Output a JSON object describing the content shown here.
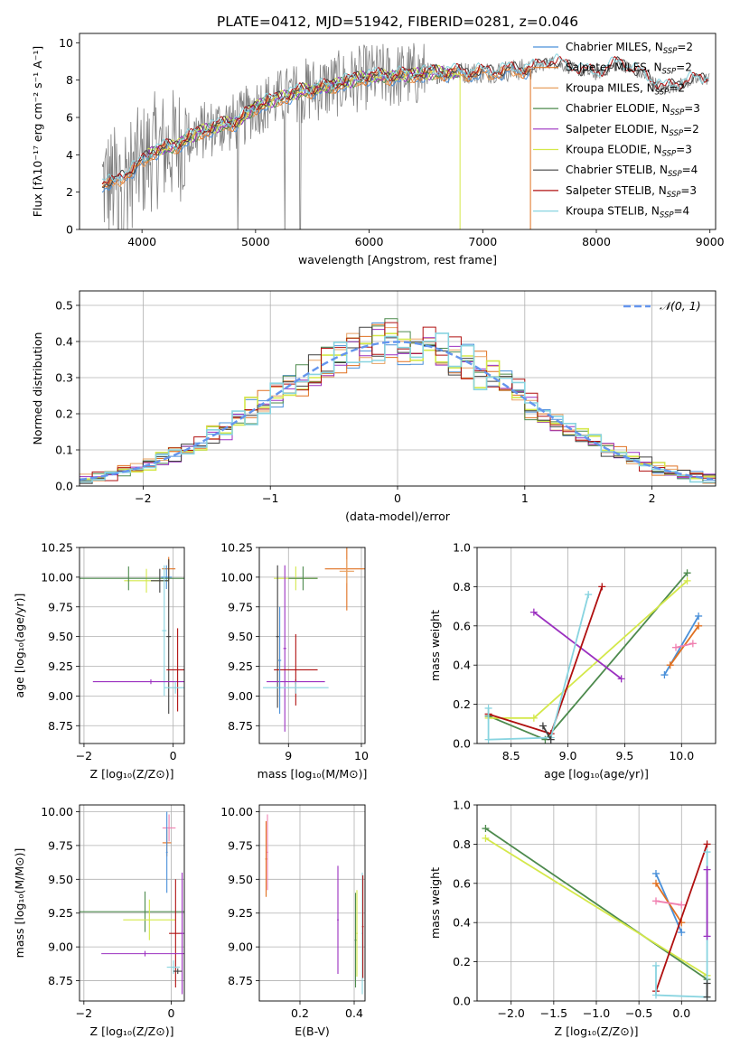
{
  "title": "PLATE=0412, MJD=51942, FIBERID=0281, z=0.046",
  "colors": {
    "Chabrier MILES": "#4a90d9",
    "Salpeter MILES": "#e07020",
    "Kroupa MILES": "#e8a060",
    "Chabrier ELODIE": "#4d8a4d",
    "Salpeter ELODIE": "#9b30c0",
    "Kroupa ELODIE": "#d4e84a",
    "Chabrier STELIB": "#404040",
    "Salpeter STELIB": "#b01010",
    "Kroupa STELIB": "#88d4e0",
    "data": "#808080",
    "normal": "#6495ed",
    "extra_pink": "#f080b0"
  },
  "chart_data": [
    {
      "id": "spectrum",
      "type": "line",
      "xlabel": "wavelength [Angstrom, rest frame]",
      "ylabel": "Flux [fλ10⁻¹⁷ erg cm⁻² s⁻¹ A⁻¹]",
      "xlim": [
        3450,
        9050
      ],
      "ylim": [
        0,
        10.5
      ],
      "xticks": [
        4000,
        5000,
        6000,
        7000,
        8000,
        9000
      ],
      "yticks": [
        0,
        2,
        4,
        6,
        8,
        10
      ],
      "legend_position": "top-right",
      "legend": [
        {
          "label": "Chabrier MILES, N",
          "sub": "SSP",
          "suffix": "=2",
          "color_key": "Chabrier MILES"
        },
        {
          "label": "Salpeter MILES, N",
          "sub": "SSP",
          "suffix": "=2",
          "color_key": "Salpeter MILES"
        },
        {
          "label": "Kroupa MILES, N",
          "sub": "SSP",
          "suffix": "=2",
          "color_key": "Kroupa MILES"
        },
        {
          "label": "Chabrier ELODIE, N",
          "sub": "SSP",
          "suffix": "=3",
          "color_key": "Chabrier ELODIE"
        },
        {
          "label": "Salpeter ELODIE, N",
          "sub": "SSP",
          "suffix": "=2",
          "color_key": "Salpeter ELODIE"
        },
        {
          "label": "Kroupa ELODIE, N",
          "sub": "SSP",
          "suffix": "=3",
          "color_key": "Kroupa ELODIE"
        },
        {
          "label": "Chabrier STELIB, N",
          "sub": "SSP",
          "suffix": "=4",
          "color_key": "Chabrier STELIB"
        },
        {
          "label": "Salpeter STELIB, N",
          "sub": "SSP",
          "suffix": "=3",
          "color_key": "Salpeter STELIB"
        },
        {
          "label": "Kroupa STELIB, N",
          "sub": "SSP",
          "suffix": "=4",
          "color_key": "Kroupa STELIB"
        }
      ],
      "continuum": [
        [
          3650,
          2.5
        ],
        [
          3750,
          2.4
        ],
        [
          3850,
          3.0
        ],
        [
          3950,
          3.3
        ],
        [
          4100,
          4.2
        ],
        [
          4300,
          4.5
        ],
        [
          4500,
          5.2
        ],
        [
          4700,
          5.6
        ],
        [
          4860,
          5.8
        ],
        [
          5000,
          6.6
        ],
        [
          5200,
          7.0
        ],
        [
          5400,
          7.4
        ],
        [
          5600,
          7.6
        ],
        [
          5800,
          7.9
        ],
        [
          6000,
          8.2
        ],
        [
          6200,
          8.2
        ],
        [
          6400,
          8.3
        ],
        [
          6600,
          8.4
        ],
        [
          6800,
          8.4
        ],
        [
          7000,
          8.4
        ],
        [
          7200,
          8.5
        ],
        [
          7450,
          8.6
        ],
        [
          7600,
          9.0
        ],
        [
          7800,
          8.6
        ],
        [
          8000,
          8.3
        ],
        [
          8200,
          8.9
        ],
        [
          8400,
          8.3
        ],
        [
          8600,
          7.5
        ],
        [
          8800,
          7.9
        ],
        [
          9000,
          8.1
        ]
      ],
      "model_ranges": {
        "Chabrier MILES": [
          3650,
          7420
        ],
        "Salpeter MILES": [
          3650,
          7420
        ],
        "Kroupa MILES": [
          3650,
          7420
        ],
        "Chabrier ELODIE": [
          4050,
          6800
        ],
        "Salpeter ELODIE": [
          4050,
          6800
        ],
        "Kroupa ELODIE": [
          4050,
          6800
        ],
        "Chabrier STELIB": [
          3650,
          9000
        ],
        "Salpeter STELIB": [
          3650,
          9000
        ],
        "Kroupa STELIB": [
          3650,
          9000
        ]
      }
    },
    {
      "id": "residuals",
      "type": "line",
      "xlabel": "(data-model)/error",
      "ylabel": "Normed distribution",
      "xlim": [
        -2.5,
        2.5
      ],
      "ylim": [
        0,
        0.54
      ],
      "xticks": [
        -2,
        -1,
        0,
        1,
        2
      ],
      "yticks": [
        0.0,
        0.1,
        0.2,
        0.3,
        0.4,
        0.5
      ],
      "legend_position": "top-right",
      "legend": [
        {
          "label": "𝒩(0, 1)",
          "color_key": "normal"
        }
      ],
      "bin_width": 0.1
    },
    {
      "id": "age-vs-Z",
      "type": "scatter",
      "xlabel": "Z [log₁₀(Z/Z⊙)]",
      "ylabel": "age  [log₁₀(age/yr)]",
      "xlim": [
        -2.1,
        0.25
      ],
      "ylim": [
        8.6,
        10.25
      ],
      "xticks": [
        -2,
        0
      ],
      "yticks": [
        8.75,
        9.0,
        9.25,
        9.5,
        9.75,
        10.0,
        10.25
      ],
      "points": [
        {
          "x": -0.1,
          "y": 10.07,
          "xerr": 0.15,
          "yerr": 0.1,
          "color_key": "Salpeter MILES"
        },
        {
          "x": -0.15,
          "y": 10.0,
          "xerr": 0.12,
          "yerr": 0.1,
          "color_key": "Chabrier MILES"
        },
        {
          "x": -0.6,
          "y": 9.97,
          "xerr": 0.5,
          "yerr": 0.1,
          "color_key": "Kroupa ELODIE"
        },
        {
          "x": -1.0,
          "y": 9.99,
          "xerr": 2.5,
          "yerr": 0.1,
          "color_key": "Chabrier ELODIE"
        },
        {
          "x": -0.3,
          "y": 9.97,
          "xerr": 0.2,
          "yerr": 0.1,
          "color_key": "Chabrier STELIB"
        },
        {
          "x": -0.2,
          "y": 9.55,
          "xerr": 0.05,
          "yerr": 0.55,
          "color_key": "Kroupa STELIB"
        },
        {
          "x": -0.1,
          "y": 9.5,
          "xerr": 0.05,
          "yerr": 0.65,
          "color_key": "Chabrier STELIB"
        },
        {
          "x": 0.3,
          "y": 9.4,
          "xerr": 0.05,
          "yerr": 0.75,
          "color_key": "Salpeter ELODIE"
        },
        {
          "x": -0.5,
          "y": 9.12,
          "xerr": 1.3,
          "yerr": 0.02,
          "color_key": "Salpeter ELODIE"
        },
        {
          "x": 0.1,
          "y": 9.22,
          "xerr": 0.25,
          "yerr": 0.35,
          "color_key": "Salpeter STELIB"
        },
        {
          "x": 0.05,
          "y": 9.07,
          "xerr": 0.25,
          "yerr": 0.05,
          "color_key": "Kroupa STELIB"
        }
      ]
    },
    {
      "id": "age-vs-mass",
      "type": "scatter",
      "xlabel": "mass [log₁₀(M/M⊙)]",
      "ylabel": "",
      "xlim": [
        8.6,
        10.05
      ],
      "ylim": [
        8.6,
        10.25
      ],
      "xticks": [
        9,
        10
      ],
      "yticks": [
        8.75,
        9.0,
        9.25,
        9.5,
        9.75,
        10.0,
        10.25
      ],
      "points": [
        {
          "x": 9.8,
          "y": 10.07,
          "xerr": 0.3,
          "yerr": 0.35,
          "color_key": "Salpeter MILES"
        },
        {
          "x": 9.8,
          "y": 10.05,
          "xerr": 0.1,
          "yerr": 0.1,
          "color_key": "Kroupa MILES"
        },
        {
          "x": 9.1,
          "y": 9.99,
          "xerr": 0.3,
          "yerr": 0.1,
          "color_key": "Kroupa ELODIE"
        },
        {
          "x": 9.2,
          "y": 9.99,
          "xerr": 0.2,
          "yerr": 0.1,
          "color_key": "Chabrier ELODIE"
        },
        {
          "x": 8.85,
          "y": 9.5,
          "xerr": 0.02,
          "yerr": 0.6,
          "color_key": "Chabrier STELIB"
        },
        {
          "x": 8.95,
          "y": 9.4,
          "xerr": 0.02,
          "yerr": 0.7,
          "color_key": "Salpeter ELODIE"
        },
        {
          "x": 9.1,
          "y": 9.12,
          "xerr": 0.4,
          "yerr": 0.02,
          "color_key": "Salpeter ELODIE"
        },
        {
          "x": 9.1,
          "y": 9.22,
          "xerr": 0.3,
          "yerr": 0.3,
          "color_key": "Salpeter STELIB"
        },
        {
          "x": 9.1,
          "y": 9.07,
          "xerr": 0.45,
          "yerr": 0.05,
          "color_key": "Kroupa STELIB"
        },
        {
          "x": 8.88,
          "y": 9.3,
          "xerr": 0.02,
          "yerr": 0.45,
          "color_key": "Chabrier MILES"
        }
      ]
    },
    {
      "id": "weight-vs-age",
      "type": "line",
      "xlabel": "age  [log₁₀(age/yr)]",
      "ylabel": "mass weight",
      "xlim": [
        8.2,
        10.3
      ],
      "ylim": [
        0,
        1.0
      ],
      "xticks": [
        8.5,
        9.0,
        9.5,
        10.0
      ],
      "yticks": [
        0.0,
        0.2,
        0.4,
        0.6,
        0.8,
        1.0
      ],
      "series": [
        {
          "color_key": "Chabrier MILES",
          "x": [
            9.85,
            10.15
          ],
          "y": [
            0.35,
            0.65
          ]
        },
        {
          "color_key": "Salpeter MILES",
          "x": [
            9.9,
            10.15
          ],
          "y": [
            0.4,
            0.6
          ]
        },
        {
          "color_key": "extra_pink",
          "x": [
            9.95,
            10.1
          ],
          "y": [
            0.49,
            0.51
          ]
        },
        {
          "color_key": "Chabrier ELODIE",
          "x": [
            8.3,
            8.8,
            10.05
          ],
          "y": [
            0.14,
            0.02,
            0.87
          ]
        },
        {
          "color_key": "Kroupa ELODIE",
          "x": [
            8.3,
            8.7,
            10.05
          ],
          "y": [
            0.13,
            0.13,
            0.83
          ]
        },
        {
          "color_key": "Salpeter ELODIE",
          "x": [
            8.7,
            9.47
          ],
          "y": [
            0.67,
            0.33
          ]
        },
        {
          "color_key": "Salpeter STELIB",
          "x": [
            8.3,
            8.85,
            9.3
          ],
          "y": [
            0.15,
            0.05,
            0.8
          ]
        },
        {
          "color_key": "Kroupa STELIB",
          "x": [
            8.3,
            8.3,
            8.85,
            9.18
          ],
          "y": [
            0.18,
            0.02,
            0.03,
            0.76
          ]
        },
        {
          "color_key": "Chabrier STELIB",
          "x": [
            8.78,
            8.85
          ],
          "y": [
            0.09,
            0.02
          ]
        }
      ]
    },
    {
      "id": "mass-vs-Z",
      "type": "scatter",
      "xlabel": "Z [log₁₀(Z/Z⊙)]",
      "ylabel": "mass [log₁₀(M/M⊙)]",
      "xlim": [
        -2.1,
        0.3
      ],
      "ylim": [
        8.6,
        10.05
      ],
      "xticks": [
        -2,
        0
      ],
      "yticks": [
        8.75,
        9.0,
        9.25,
        9.5,
        9.75,
        10.0
      ],
      "points": [
        {
          "x": -0.1,
          "y": 9.77,
          "xerr": 0.1,
          "yerr": 0.1,
          "color_key": "Salpeter MILES"
        },
        {
          "x": -0.05,
          "y": 9.88,
          "xerr": 0.15,
          "yerr": 0.1,
          "color_key": "extra_pink"
        },
        {
          "x": -0.1,
          "y": 9.7,
          "xerr": 0.02,
          "yerr": 0.3,
          "color_key": "Chabrier MILES"
        },
        {
          "x": -0.6,
          "y": 9.26,
          "xerr": 1.9,
          "yerr": 0.15,
          "color_key": "Chabrier ELODIE"
        },
        {
          "x": -0.5,
          "y": 9.2,
          "xerr": 0.6,
          "yerr": 0.15,
          "color_key": "Kroupa ELODIE"
        },
        {
          "x": 0.1,
          "y": 9.1,
          "xerr": 0.15,
          "yerr": 0.4,
          "color_key": "Salpeter STELIB"
        },
        {
          "x": -0.6,
          "y": 8.95,
          "xerr": 1.0,
          "yerr": 0.02,
          "color_key": "Salpeter ELODIE"
        },
        {
          "x": 0.25,
          "y": 9.1,
          "xerr": 0.05,
          "yerr": 0.45,
          "color_key": "Salpeter ELODIE"
        },
        {
          "x": 0.05,
          "y": 8.85,
          "xerr": 0.15,
          "yerr": 0.05,
          "color_key": "Kroupa STELIB"
        },
        {
          "x": 0.15,
          "y": 8.82,
          "xerr": 0.1,
          "yerr": 0.02,
          "color_key": "Chabrier STELIB"
        }
      ]
    },
    {
      "id": "mass-vs-EBV",
      "type": "scatter",
      "xlabel": "E(B-V)",
      "ylabel": "",
      "xlim": [
        0.05,
        0.44
      ],
      "ylim": [
        8.6,
        10.05
      ],
      "xticks": [
        0.2,
        0.4
      ],
      "yticks": [
        8.75,
        9.0,
        9.25,
        9.5,
        9.75,
        10.0
      ],
      "points": [
        {
          "x": 0.075,
          "y": 9.65,
          "xerr": 0.003,
          "yerr": 0.28,
          "color_key": "Salpeter MILES"
        },
        {
          "x": 0.08,
          "y": 9.7,
          "xerr": 0.003,
          "yerr": 0.28,
          "color_key": "extra_pink"
        },
        {
          "x": 0.34,
          "y": 9.2,
          "xerr": 0.003,
          "yerr": 0.4,
          "color_key": "Salpeter ELODIE"
        },
        {
          "x": 0.41,
          "y": 9.1,
          "xerr": 0.003,
          "yerr": 0.32,
          "color_key": "Kroupa ELODIE"
        },
        {
          "x": 0.405,
          "y": 9.05,
          "xerr": 0.003,
          "yerr": 0.35,
          "color_key": "Chabrier ELODIE"
        },
        {
          "x": 0.43,
          "y": 9.1,
          "xerr": 0.003,
          "yerr": 0.45,
          "color_key": "Kroupa STELIB"
        },
        {
          "x": 0.432,
          "y": 9.15,
          "xerr": 0.003,
          "yerr": 0.38,
          "color_key": "Salpeter STELIB"
        }
      ]
    },
    {
      "id": "weight-vs-Z",
      "type": "line",
      "xlabel": "Z [log₁₀(Z/Z⊙)]",
      "ylabel": "mass weight",
      "xlim": [
        -2.4,
        0.4
      ],
      "ylim": [
        0,
        1.0
      ],
      "xticks": [
        -2.0,
        -1.5,
        -1.0,
        -0.5,
        0.0
      ],
      "yticks": [
        0.0,
        0.2,
        0.4,
        0.6,
        0.8,
        1.0
      ],
      "series": [
        {
          "color_key": "Chabrier ELODIE",
          "x": [
            -2.3,
            0.3
          ],
          "y": [
            0.88,
            0.11
          ]
        },
        {
          "color_key": "Kroupa ELODIE",
          "x": [
            -2.3,
            0.3
          ],
          "y": [
            0.83,
            0.13
          ]
        },
        {
          "color_key": "Chabrier MILES",
          "x": [
            -0.3,
            0.0
          ],
          "y": [
            0.65,
            0.35
          ]
        },
        {
          "color_key": "Salpeter MILES",
          "x": [
            -0.3,
            0.0
          ],
          "y": [
            0.6,
            0.4
          ]
        },
        {
          "color_key": "extra_pink",
          "x": [
            -0.3,
            0.0
          ],
          "y": [
            0.51,
            0.49
          ]
        },
        {
          "color_key": "Salpeter STELIB",
          "x": [
            -0.3,
            0.3
          ],
          "y": [
            0.05,
            0.8
          ]
        },
        {
          "color_key": "Kroupa STELIB",
          "x": [
            -0.3,
            -0.3,
            0.3,
            0.3
          ],
          "y": [
            0.18,
            0.03,
            0.02,
            0.76
          ]
        },
        {
          "color_key": "Salpeter ELODIE",
          "x": [
            0.3,
            0.3
          ],
          "y": [
            0.67,
            0.33
          ]
        },
        {
          "color_key": "Chabrier STELIB",
          "x": [
            0.3,
            0.3
          ],
          "y": [
            0.09,
            0.02
          ]
        }
      ]
    }
  ]
}
